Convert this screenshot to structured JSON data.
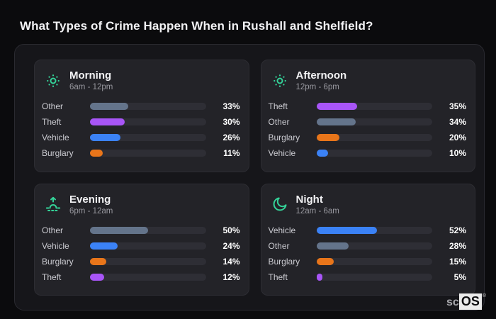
{
  "page": {
    "title": "What Types of Crime Happen When in Rushall and Shelfield?"
  },
  "watermark": {
    "prefix": "sc",
    "box": "OS",
    "reg": "®"
  },
  "colors": {
    "background": "#0b0b0d",
    "panel_background": "#16161a",
    "card_background": "#232328",
    "track": "#2e2e35",
    "icon_accent": "#34d399",
    "bars": {
      "Other": "#64748b",
      "Theft": "#a855f7",
      "Vehicle": "#3b82f6",
      "Burglary": "#e8751a"
    }
  },
  "chart_data": [
    {
      "type": "bar",
      "title": "Morning",
      "subtitle": "6am - 12pm",
      "icon": "sun-icon",
      "categories": [
        "Other",
        "Theft",
        "Vehicle",
        "Burglary"
      ],
      "values": [
        33,
        30,
        26,
        11
      ],
      "value_suffix": "%",
      "xlim": [
        0,
        100
      ],
      "orientation": "horizontal"
    },
    {
      "type": "bar",
      "title": "Afternoon",
      "subtitle": "12pm - 6pm",
      "icon": "sun-icon",
      "categories": [
        "Theft",
        "Other",
        "Burglary",
        "Vehicle"
      ],
      "values": [
        35,
        34,
        20,
        10
      ],
      "value_suffix": "%",
      "xlim": [
        0,
        100
      ],
      "orientation": "horizontal"
    },
    {
      "type": "bar",
      "title": "Evening",
      "subtitle": "6pm - 12am",
      "icon": "sunrise-icon",
      "categories": [
        "Other",
        "Vehicle",
        "Burglary",
        "Theft"
      ],
      "values": [
        50,
        24,
        14,
        12
      ],
      "value_suffix": "%",
      "xlim": [
        0,
        100
      ],
      "orientation": "horizontal"
    },
    {
      "type": "bar",
      "title": "Night",
      "subtitle": "12am - 6am",
      "icon": "moon-icon",
      "categories": [
        "Vehicle",
        "Other",
        "Burglary",
        "Theft"
      ],
      "values": [
        52,
        28,
        15,
        5
      ],
      "value_suffix": "%",
      "xlim": [
        0,
        100
      ],
      "orientation": "horizontal"
    }
  ]
}
